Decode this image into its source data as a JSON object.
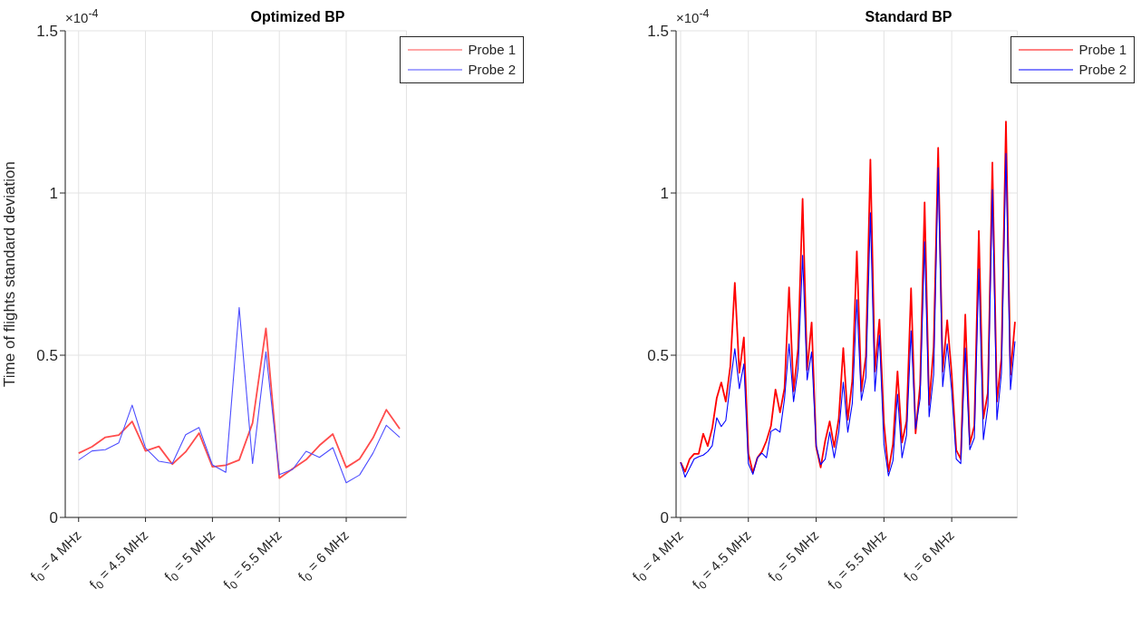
{
  "chart_data": [
    {
      "type": "line",
      "title": "Optimized BP",
      "ylabel": "Time of flights standard deviation",
      "annotations": [
        "×10$^{-4}$"
      ],
      "categories": [
        "f$_{0}$ = 4 MHz",
        null,
        null,
        null,
        null,
        "f$_{0}$ = 4.5 MHz",
        null,
        null,
        null,
        null,
        "f$_{0}$ = 5 MHz",
        null,
        null,
        null,
        null,
        "f$_{0}$ = 5.5 MHz",
        null,
        null,
        null,
        null,
        "f$_{0}$ = 6 MHz",
        null,
        null,
        null,
        null
      ],
      "series": [
        {
          "name": "Probe 1",
          "color": "#ff4d4d",
          "values": [
            0.198,
            0.218,
            0.247,
            0.254,
            0.296,
            0.205,
            0.219,
            0.164,
            0.202,
            0.26,
            0.156,
            0.161,
            0.177,
            0.291,
            0.583,
            0.121,
            0.15,
            0.178,
            0.222,
            0.257,
            0.154,
            0.18,
            0.245,
            0.332,
            0.273
          ]
        },
        {
          "name": "Probe 2",
          "color": "#4d4dff",
          "values": [
            0.177,
            0.205,
            0.209,
            0.23,
            0.346,
            0.214,
            0.173,
            0.166,
            0.255,
            0.277,
            0.162,
            0.139,
            0.647,
            0.166,
            0.51,
            0.132,
            0.148,
            0.204,
            0.185,
            0.215,
            0.107,
            0.131,
            0.198,
            0.284,
            0.247
          ]
        }
      ],
      "ylim": [
        0,
        1.5
      ],
      "yticks": [
        0,
        0.5,
        1,
        1.5
      ],
      "grid": true,
      "legend": "top right"
    },
    {
      "type": "line",
      "title": "Standard BP",
      "annotations": [
        "×10$^{-4}$"
      ],
      "categories": [
        "f$_{0}$ = 4 MHz",
        null,
        null,
        null,
        null,
        null,
        null,
        null,
        null,
        null,
        null,
        null,
        null,
        null,
        null,
        "f$_{0}$ = 4.5 MHz",
        null,
        null,
        null,
        null,
        null,
        null,
        null,
        null,
        null,
        null,
        null,
        null,
        null,
        null,
        "f$_{0}$ = 5 MHz",
        null,
        null,
        null,
        null,
        null,
        null,
        null,
        null,
        null,
        null,
        null,
        null,
        null,
        null,
        "f$_{0}$ = 5.5 MHz",
        null,
        null,
        null,
        null,
        null,
        null,
        null,
        null,
        null,
        null,
        null,
        null,
        null,
        null,
        "f$_{0}$ = 6 MHz",
        null,
        null,
        null,
        null,
        null,
        null,
        null,
        null,
        null,
        null,
        null,
        null,
        null,
        null
      ],
      "series": [
        {
          "name": "Probe 1",
          "color": "#ff0000",
          "values": [
            0.17,
            0.141,
            0.18,
            0.196,
            0.196,
            0.258,
            0.22,
            0.275,
            0.368,
            0.416,
            0.357,
            0.466,
            0.723,
            0.446,
            0.555,
            0.196,
            0.138,
            0.184,
            0.203,
            0.236,
            0.282,
            0.394,
            0.324,
            0.398,
            0.709,
            0.389,
            0.52,
            0.982,
            0.454,
            0.601,
            0.217,
            0.154,
            0.236,
            0.296,
            0.217,
            0.305,
            0.522,
            0.301,
            0.422,
            0.82,
            0.389,
            0.496,
            1.103,
            0.45,
            0.61,
            0.291,
            0.142,
            0.226,
            0.45,
            0.231,
            0.296,
            0.706,
            0.259,
            0.408,
            0.971,
            0.347,
            0.524,
            1.139,
            0.45,
            0.608,
            0.44,
            0.208,
            0.18,
            0.625,
            0.226,
            0.282,
            0.883,
            0.305,
            0.385,
            1.094,
            0.357,
            0.492,
            1.22,
            0.44,
            0.603
          ]
        },
        {
          "name": "Probe 2",
          "color": "#0000ff",
          "values": [
            0.17,
            0.124,
            0.152,
            0.18,
            0.187,
            0.192,
            0.203,
            0.221,
            0.307,
            0.28,
            0.299,
            0.413,
            0.52,
            0.397,
            0.473,
            0.166,
            0.133,
            0.184,
            0.198,
            0.184,
            0.265,
            0.273,
            0.263,
            0.366,
            0.535,
            0.357,
            0.459,
            0.808,
            0.424,
            0.51,
            0.222,
            0.163,
            0.18,
            0.263,
            0.184,
            0.263,
            0.417,
            0.263,
            0.352,
            0.671,
            0.361,
            0.431,
            0.939,
            0.389,
            0.561,
            0.226,
            0.128,
            0.175,
            0.38,
            0.184,
            0.254,
            0.575,
            0.273,
            0.366,
            0.85,
            0.31,
            0.44,
            1.078,
            0.403,
            0.535,
            0.389,
            0.18,
            0.166,
            0.522,
            0.209,
            0.245,
            0.766,
            0.24,
            0.343,
            1.01,
            0.301,
            0.445,
            1.122,
            0.394,
            0.543
          ]
        }
      ],
      "ylim": [
        0,
        1.5
      ],
      "yticks": [
        0,
        0.5,
        1,
        1.5
      ],
      "grid": true,
      "legend": "top right"
    }
  ]
}
